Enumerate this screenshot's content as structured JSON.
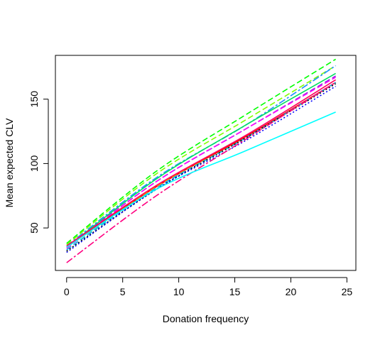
{
  "chart_data": {
    "type": "line",
    "title": "",
    "xlabel": "Donation frequency",
    "ylabel": "Mean expected CLV",
    "xlim": [
      -1,
      25.8
    ],
    "ylim": [
      17,
      184
    ],
    "x_ticks": [
      0,
      5,
      10,
      15,
      20,
      25
    ],
    "y_ticks": [
      50,
      100,
      150
    ],
    "grid": false,
    "legend": "none",
    "x": [
      0,
      8,
      16,
      24
    ],
    "series": [
      {
        "color": "#00FF00",
        "dash": "8,4",
        "values": [
          38,
          94,
          138,
          181
        ]
      },
      {
        "color": "#80FF00",
        "dash": "8,4",
        "values": [
          37,
          92,
          134,
          176
        ]
      },
      {
        "color": "#1E90FF",
        "dash": "10,3,3,3",
        "values": [
          36,
          89,
          130,
          176
        ]
      },
      {
        "color": "#00E060",
        "dash": "",
        "values": [
          35,
          88,
          130,
          170
        ]
      },
      {
        "color": "#8A2BE2",
        "dash": "8,4",
        "values": [
          35,
          86,
          127,
          168
        ]
      },
      {
        "color": "#FF00FF",
        "dash": "8,4",
        "values": [
          34,
          86,
          127,
          167
        ]
      },
      {
        "color": "#FF0060",
        "dash": "",
        "values": [
          36,
          83,
          122,
          165
        ]
      },
      {
        "color": "#FF0000",
        "dash": "",
        "values": [
          35,
          82,
          121,
          163
        ]
      },
      {
        "color": "#FF8000",
        "dash": "8,4",
        "values": [
          33,
          82,
          120,
          163
        ]
      },
      {
        "color": "#00BFFF",
        "dash": "8,4",
        "values": [
          33,
          81,
          120,
          163
        ]
      },
      {
        "color": "#000000",
        "dash": "2,3",
        "values": [
          32,
          80,
          120,
          162
        ]
      },
      {
        "color": "#0000FF",
        "dash": "2,3",
        "values": [
          31,
          80,
          118,
          160
        ]
      },
      {
        "color": "#FF0080",
        "dash": "10,3,3,3",
        "values": [
          23,
          75,
          119,
          163
        ]
      },
      {
        "color": "#00FFFF",
        "dash": "",
        "values": [
          35,
          80,
          110,
          140
        ]
      }
    ]
  }
}
